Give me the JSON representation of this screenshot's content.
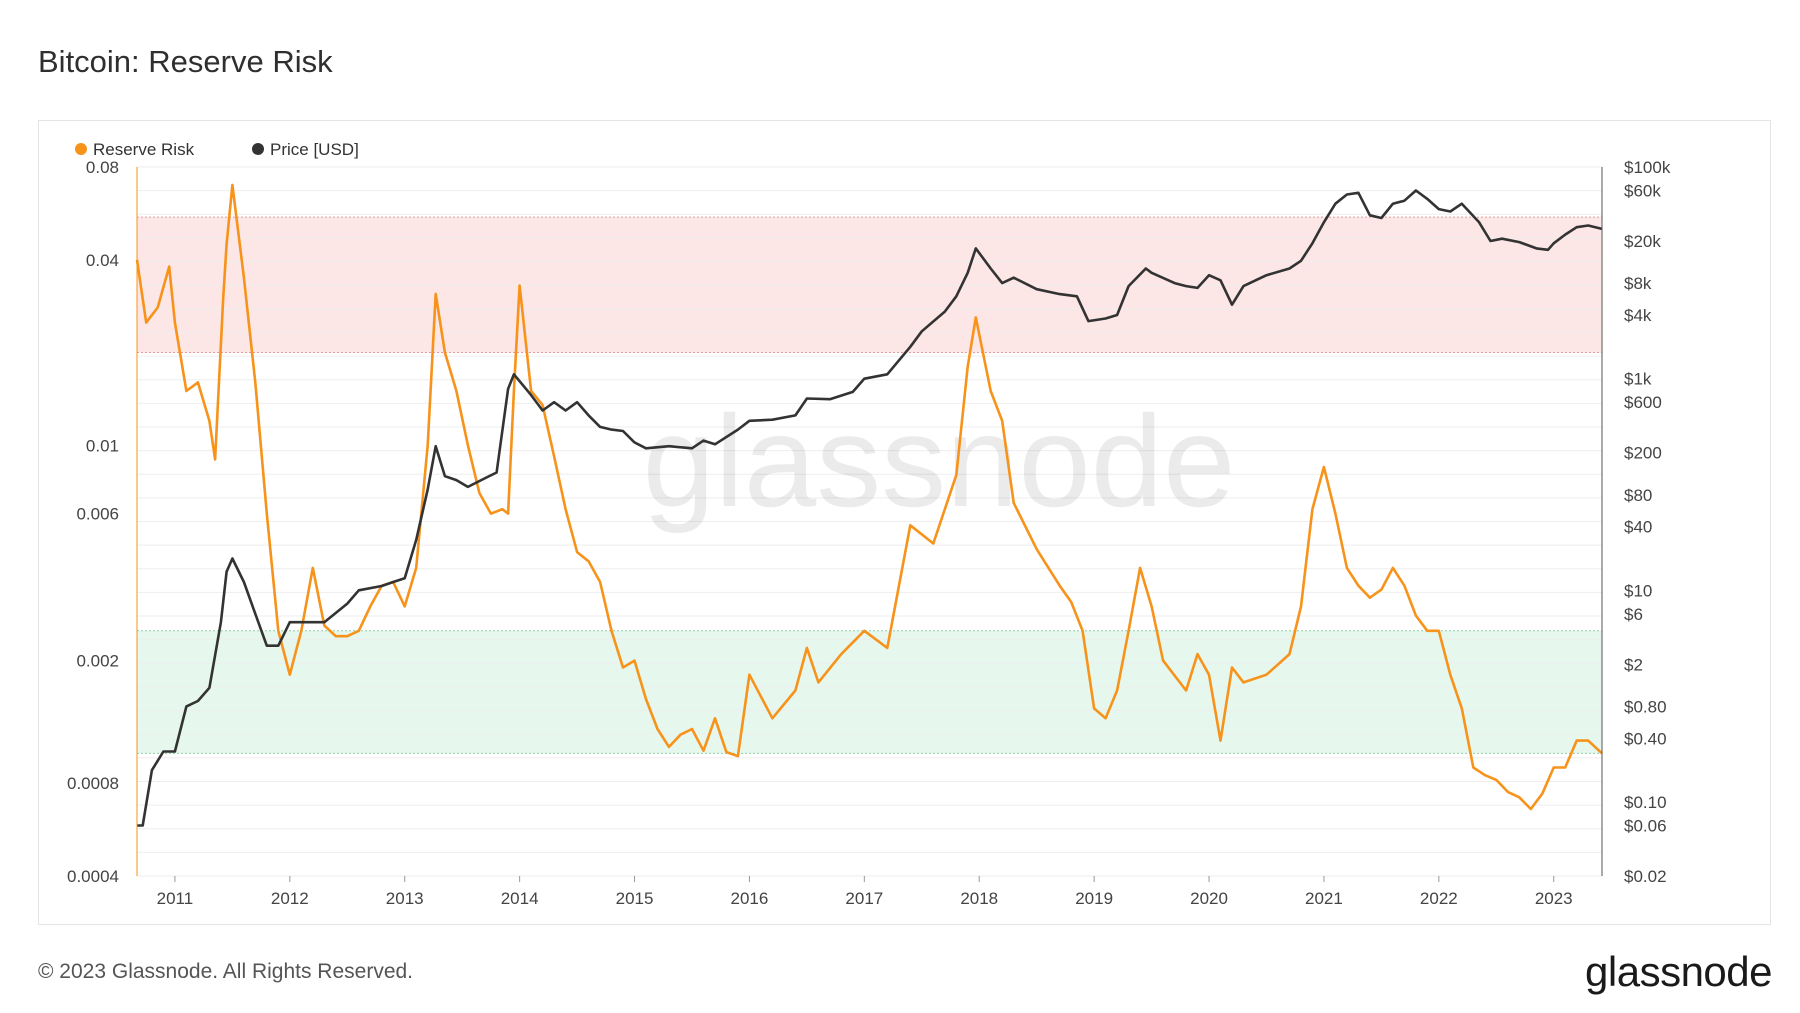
{
  "title": "Bitcoin: Reserve Risk",
  "footer": {
    "copyright": "© 2023 Glassnode. All Rights Reserved.",
    "logo": "glassnode"
  },
  "watermark": "glassnode",
  "colors": {
    "reserve_risk": "#f7931a",
    "price": "#333333",
    "high_band": "#fde6e6",
    "low_band": "#e6f7ee"
  },
  "chart_data": {
    "type": "line",
    "title": "Bitcoin: Reserve Risk",
    "legend": {
      "placement": "top-left",
      "entries": [
        "Reserve Risk",
        "Price [USD]"
      ]
    },
    "x_ticks": [
      "2011",
      "2012",
      "2013",
      "2014",
      "2015",
      "2016",
      "2017",
      "2018",
      "2019",
      "2020",
      "2021",
      "2022",
      "2023"
    ],
    "x_range": [
      2010.67,
      2023.42
    ],
    "y_left": {
      "scale": "log",
      "range": [
        0.0004,
        0.08
      ],
      "tick_values": [
        0.0004,
        0.0008,
        0.002,
        0.006,
        0.01,
        0.04,
        0.08
      ],
      "tick_labels": [
        "0.0004",
        "0.0008",
        "0.002",
        "0.006",
        "0.01",
        "0.04",
        "0.08"
      ]
    },
    "y_right": {
      "scale": "log",
      "range": [
        0.02,
        100000
      ],
      "tick_values": [
        100000,
        60000,
        20000,
        8000,
        4000,
        1000,
        600,
        200,
        80,
        40,
        10,
        6,
        2,
        0.8,
        0.4,
        0.1,
        0.06,
        0.02
      ],
      "tick_labels": [
        "$100k",
        "$60k",
        "$20k",
        "$8k",
        "$4k",
        "$1k",
        "$600",
        "$200",
        "$80",
        "$40",
        "$10",
        "$6",
        "$2",
        "$0.80",
        "$0.40",
        "$0.10",
        "$0.06",
        "$0.02"
      ]
    },
    "bands": [
      {
        "name": "high",
        "axis": "left",
        "from": 0.02,
        "to": 0.055
      },
      {
        "name": "low",
        "axis": "left",
        "from": 0.001,
        "to": 0.0025
      }
    ],
    "series": [
      {
        "name": "Reserve Risk",
        "axis": "left",
        "x": [
          2010.67,
          2010.75,
          2010.85,
          2010.95,
          2011.0,
          2011.1,
          2011.2,
          2011.3,
          2011.35,
          2011.42,
          2011.45,
          2011.5,
          2011.6,
          2011.7,
          2011.8,
          2011.9,
          2012.0,
          2012.1,
          2012.2,
          2012.3,
          2012.4,
          2012.5,
          2012.6,
          2012.7,
          2012.8,
          2012.9,
          2013.0,
          2013.1,
          2013.2,
          2013.27,
          2013.35,
          2013.45,
          2013.55,
          2013.65,
          2013.75,
          2013.85,
          2013.9,
          2013.95,
          2014.0,
          2014.1,
          2014.2,
          2014.3,
          2014.4,
          2014.5,
          2014.6,
          2014.7,
          2014.8,
          2014.9,
          2015.0,
          2015.1,
          2015.2,
          2015.3,
          2015.4,
          2015.5,
          2015.6,
          2015.7,
          2015.8,
          2015.9,
          2016.0,
          2016.2,
          2016.4,
          2016.5,
          2016.6,
          2016.8,
          2017.0,
          2017.2,
          2017.4,
          2017.6,
          2017.8,
          2017.9,
          2017.97,
          2018.1,
          2018.2,
          2018.3,
          2018.5,
          2018.7,
          2018.8,
          2018.9,
          2019.0,
          2019.1,
          2019.2,
          2019.3,
          2019.4,
          2019.5,
          2019.6,
          2019.8,
          2019.9,
          2020.0,
          2020.1,
          2020.2,
          2020.3,
          2020.5,
          2020.7,
          2020.8,
          2020.9,
          2021.0,
          2021.1,
          2021.2,
          2021.3,
          2021.4,
          2021.5,
          2021.6,
          2021.7,
          2021.8,
          2021.9,
          2022.0,
          2022.1,
          2022.2,
          2022.3,
          2022.4,
          2022.5,
          2022.6,
          2022.7,
          2022.8,
          2022.9,
          2023.0,
          2023.1,
          2023.2,
          2023.3,
          2023.42
        ],
        "y": [
          0.04,
          0.025,
          0.028,
          0.038,
          0.025,
          0.015,
          0.016,
          0.012,
          0.009,
          0.03,
          0.045,
          0.07,
          0.035,
          0.016,
          0.006,
          0.0025,
          0.0018,
          0.0025,
          0.004,
          0.0026,
          0.0024,
          0.0024,
          0.0025,
          0.003,
          0.0035,
          0.0036,
          0.003,
          0.004,
          0.01,
          0.031,
          0.02,
          0.015,
          0.01,
          0.007,
          0.006,
          0.0062,
          0.006,
          0.015,
          0.033,
          0.015,
          0.0135,
          0.0092,
          0.0062,
          0.0045,
          0.0042,
          0.0036,
          0.0025,
          0.0019,
          0.002,
          0.0015,
          0.0012,
          0.00105,
          0.00115,
          0.0012,
          0.00102,
          0.0013,
          0.00101,
          0.00098,
          0.0018,
          0.0013,
          0.0016,
          0.0022,
          0.0017,
          0.0021,
          0.0025,
          0.0022,
          0.0055,
          0.0048,
          0.008,
          0.018,
          0.026,
          0.015,
          0.012,
          0.0065,
          0.0046,
          0.0035,
          0.0031,
          0.0025,
          0.0014,
          0.0013,
          0.0016,
          0.0025,
          0.004,
          0.003,
          0.002,
          0.0016,
          0.0021,
          0.0018,
          0.0011,
          0.0019,
          0.0017,
          0.0018,
          0.0021,
          0.003,
          0.0062,
          0.0085,
          0.006,
          0.004,
          0.0035,
          0.0032,
          0.0034,
          0.004,
          0.0035,
          0.0028,
          0.0025,
          0.0025,
          0.0018,
          0.0014,
          0.0009,
          0.00085,
          0.00082,
          0.00075,
          0.00072,
          0.00066,
          0.00074,
          0.0009,
          0.0009,
          0.0011,
          0.0011,
          0.001
        ]
      },
      {
        "name": "Price [USD]",
        "axis": "right",
        "x": [
          2010.67,
          2010.72,
          2010.8,
          2010.9,
          2011.0,
          2011.1,
          2011.2,
          2011.3,
          2011.4,
          2011.45,
          2011.5,
          2011.6,
          2011.7,
          2011.8,
          2011.9,
          2012.0,
          2012.1,
          2012.3,
          2012.5,
          2012.6,
          2012.8,
          2012.9,
          2013.0,
          2013.1,
          2013.2,
          2013.27,
          2013.35,
          2013.45,
          2013.55,
          2013.7,
          2013.8,
          2013.9,
          2013.95,
          2014.1,
          2014.2,
          2014.3,
          2014.4,
          2014.5,
          2014.6,
          2014.7,
          2014.8,
          2014.9,
          2015.0,
          2015.1,
          2015.3,
          2015.5,
          2015.6,
          2015.7,
          2015.9,
          2016.0,
          2016.2,
          2016.4,
          2016.5,
          2016.7,
          2016.9,
          2017.0,
          2017.2,
          2017.4,
          2017.5,
          2017.7,
          2017.8,
          2017.9,
          2017.97,
          2018.1,
          2018.2,
          2018.3,
          2018.5,
          2018.7,
          2018.85,
          2018.95,
          2019.1,
          2019.2,
          2019.3,
          2019.45,
          2019.5,
          2019.7,
          2019.8,
          2019.9,
          2020.0,
          2020.1,
          2020.2,
          2020.3,
          2020.5,
          2020.7,
          2020.8,
          2020.9,
          2021.0,
          2021.1,
          2021.2,
          2021.3,
          2021.4,
          2021.5,
          2021.6,
          2021.7,
          2021.8,
          2021.9,
          2022.0,
          2022.1,
          2022.2,
          2022.35,
          2022.45,
          2022.55,
          2022.7,
          2022.85,
          2022.95,
          2023.0,
          2023.1,
          2023.2,
          2023.3,
          2023.42
        ],
        "y": [
          0.06,
          0.06,
          0.2,
          0.3,
          0.3,
          0.8,
          0.9,
          1.2,
          5.0,
          15,
          20,
          12,
          6,
          3,
          3.0,
          5.0,
          5.0,
          5.0,
          7.5,
          10,
          11,
          12,
          13,
          30,
          90,
          230,
          120,
          110,
          95,
          115,
          130,
          800,
          1100,
          700,
          500,
          600,
          500,
          600,
          450,
          350,
          330,
          320,
          250,
          220,
          230,
          220,
          260,
          240,
          330,
          400,
          410,
          450,
          650,
          640,
          750,
          1000,
          1100,
          2000,
          2800,
          4300,
          6000,
          10000,
          17000,
          11000,
          8000,
          9000,
          7000,
          6300,
          6000,
          3500,
          3700,
          4000,
          7500,
          11000,
          10000,
          8000,
          7500,
          7200,
          9500,
          8500,
          5000,
          7500,
          9500,
          11000,
          13000,
          19000,
          30000,
          45000,
          55000,
          57000,
          35000,
          33000,
          45000,
          48000,
          60000,
          50000,
          40000,
          38000,
          45000,
          30000,
          20000,
          21000,
          19500,
          17000,
          16500,
          19000,
          23000,
          27000,
          28000,
          26000
        ]
      }
    ]
  }
}
